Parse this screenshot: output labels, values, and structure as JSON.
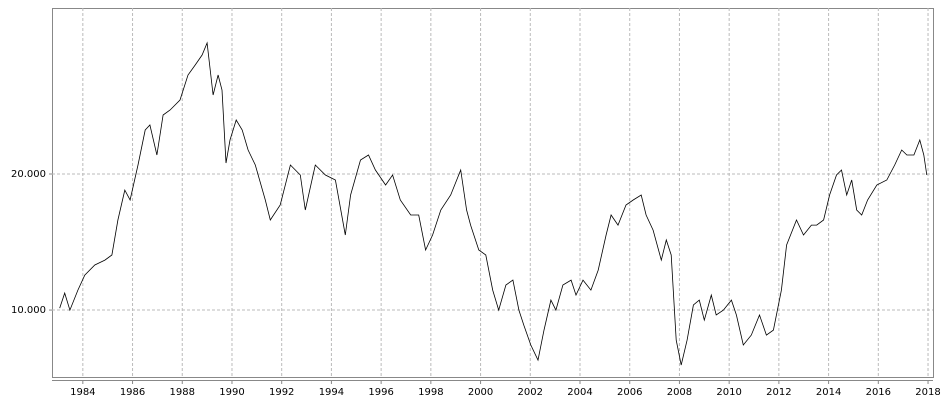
{
  "chart_data": {
    "type": "line",
    "log_y": true,
    "grid": true,
    "color": "#000000",
    "xlim": [
      1982.76,
      2018.2
    ],
    "ylim": [
      7110,
      46600
    ],
    "xticks": [
      1984,
      1986,
      1988,
      1990,
      1992,
      1994,
      1996,
      1998,
      2000,
      2002,
      2004,
      2006,
      2008,
      2010,
      2012,
      2014,
      2016,
      2018
    ],
    "yticks": [
      {
        "value": 10000,
        "label": "10.000"
      },
      {
        "value": 20000,
        "label": "20.000"
      }
    ],
    "x": [
      1983.07,
      1983.27,
      1983.48,
      1983.8,
      1984.08,
      1984.48,
      1984.89,
      1985.17,
      1985.41,
      1985.69,
      1985.9,
      1986.22,
      1986.51,
      1986.7,
      1986.98,
      1987.23,
      1987.51,
      1987.91,
      1988.23,
      1988.52,
      1988.8,
      1989.0,
      1989.24,
      1989.44,
      1989.6,
      1989.76,
      1989.92,
      1990.17,
      1990.41,
      1990.65,
      1990.94,
      1991.34,
      1991.54,
      1991.94,
      1992.35,
      1992.75,
      1992.95,
      1993.35,
      1993.76,
      1994.16,
      1994.56,
      1994.77,
      1995.17,
      1995.49,
      1995.77,
      1996.18,
      1996.46,
      1996.77,
      1997.19,
      1997.51,
      1997.79,
      1998.07,
      1998.4,
      1998.8,
      1999.2,
      1999.44,
      1999.6,
      1999.93,
      2000.21,
      2000.49,
      2000.73,
      2001.02,
      2001.3,
      2001.54,
      2001.74,
      2002.02,
      2002.31,
      2002.55,
      2002.83,
      2003.03,
      2003.31,
      2003.64,
      2003.84,
      2004.12,
      2004.44,
      2004.73,
      2005.05,
      2005.25,
      2005.53,
      2005.85,
      2006.14,
      2006.46,
      2006.66,
      2006.94,
      2007.27,
      2007.47,
      2007.67,
      2007.87,
      2008.07,
      2008.31,
      2008.56,
      2008.8,
      2009.0,
      2009.28,
      2009.48,
      2009.77,
      2010.09,
      2010.29,
      2010.57,
      2010.89,
      2011.22,
      2011.5,
      2011.78,
      2012.1,
      2012.31,
      2012.71,
      2012.99,
      2013.31,
      2013.52,
      2013.8,
      2014.04,
      2014.32,
      2014.52,
      2014.73,
      2014.93,
      2015.13,
      2015.33,
      2015.57,
      2015.94,
      2016.34,
      2016.66,
      2016.94,
      2017.15,
      2017.43,
      2017.67,
      2017.83,
      2017.95
    ],
    "values": [
      10100,
      10900,
      10000,
      11070,
      11950,
      12580,
      12900,
      13240,
      15820,
      18430,
      17520,
      20940,
      25030,
      25670,
      22030,
      27010,
      27710,
      29160,
      33120,
      34850,
      36680,
      38990,
      29910,
      33120,
      30680,
      21150,
      23780,
      26330,
      25030,
      22600,
      20940,
      17520,
      15820,
      17080,
      20940,
      19900,
      16650,
      20940,
      19900,
      19400,
      14660,
      17970,
      21480,
      22030,
      20410,
      18910,
      19900,
      17520,
      16230,
      16230,
      13580,
      14660,
      16650,
      17970,
      20410,
      16650,
      15420,
      13580,
      13240,
      11070,
      10000,
      11360,
      11650,
      10000,
      9260,
      8370,
      7750,
      9030,
      10520,
      10000,
      11360,
      11650,
      10790,
      11650,
      11070,
      12260,
      14660,
      16230,
      15420,
      17080,
      17520,
      17970,
      16230,
      15030,
      12900,
      14290,
      13240,
      8580,
      7560,
      8580,
      10260,
      10520,
      9500,
      10790,
      9750,
      10000,
      10520,
      9750,
      8370,
      8800,
      9750,
      8800,
      9030,
      11070,
      13930,
      15820,
      14660,
      15420,
      15420,
      15820,
      17970,
      19900,
      20410,
      17970,
      19400,
      16650,
      16230,
      17520,
      18910,
      19400,
      20940,
      22600,
      22030,
      22030,
      23780,
      22030,
      19900
    ]
  }
}
